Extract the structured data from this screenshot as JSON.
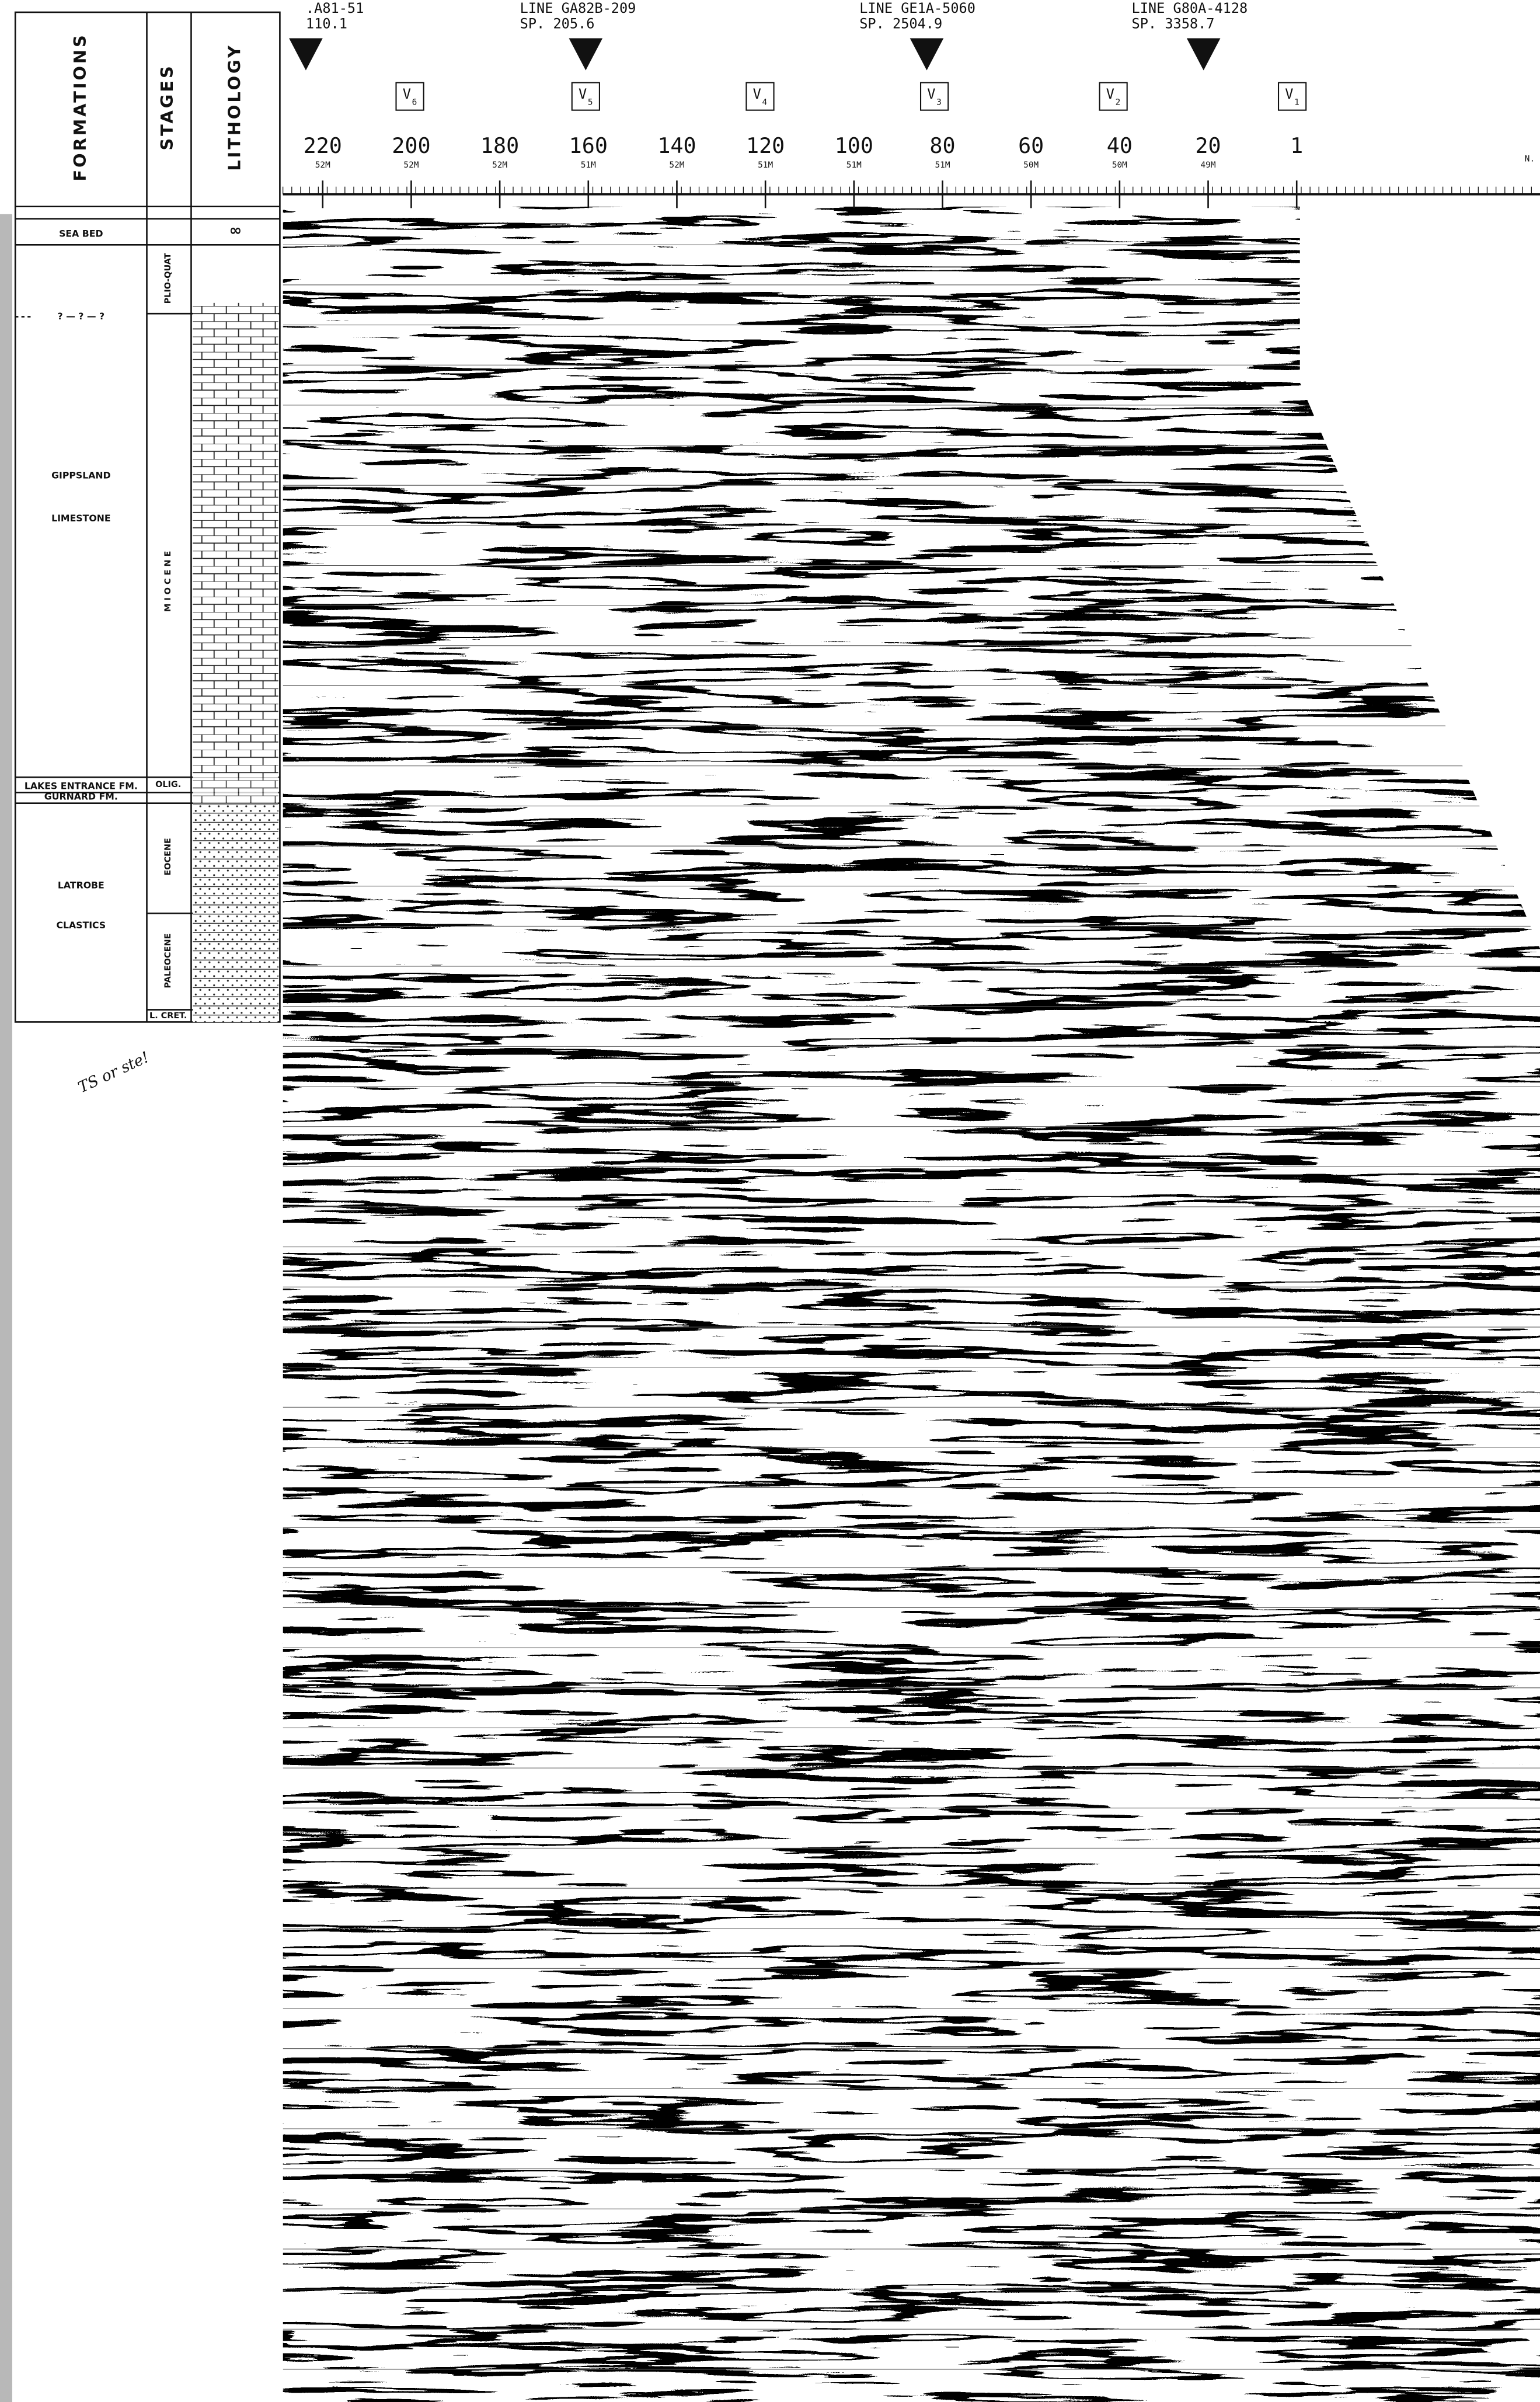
{
  "header": {
    "columns": [
      "FORMATIONS",
      "STAGES",
      "LITHOLOGY"
    ]
  },
  "formations": [
    "SEA BED",
    "? — ? — ?",
    "GIPPSLAND",
    "LIMESTONE",
    "LAKES ENTRANCE FM.",
    "GURNARD FM.",
    "LATROBE",
    "CLASTICS"
  ],
  "stages": [
    "PLIO-QUAT",
    "M I O C E N E",
    "OLIG.",
    "EOCENE",
    "PALEOCENE",
    "L. CRET."
  ],
  "lines": [
    {
      "name": ".A81-51",
      "sp": "110.1"
    },
    {
      "name": "LINE GA82B-209",
      "sp": "SP. 205.6"
    },
    {
      "name": "LINE GE1A-5060",
      "sp": "SP. 2504.9"
    },
    {
      "name": "LINE G80A-4128",
      "sp": "SP. 3358.7"
    }
  ],
  "velocity_markers": [
    {
      "letter": "V",
      "index": "6"
    },
    {
      "letter": "V",
      "index": "5"
    },
    {
      "letter": "V",
      "index": "4"
    },
    {
      "letter": "V",
      "index": "3"
    },
    {
      "letter": "V",
      "index": "2"
    },
    {
      "letter": "V",
      "index": "1"
    }
  ],
  "shotpoints": [
    {
      "label": "220",
      "offset": "52M"
    },
    {
      "label": "200",
      "offset": "52M"
    },
    {
      "label": "180",
      "offset": "52M"
    },
    {
      "label": "160",
      "offset": "51M"
    },
    {
      "label": "140",
      "offset": "52M"
    },
    {
      "label": "120",
      "offset": "51M"
    },
    {
      "label": "100",
      "offset": "51M"
    },
    {
      "label": "80",
      "offset": "51M"
    },
    {
      "label": "60",
      "offset": "50M"
    },
    {
      "label": "40",
      "offset": "50M"
    },
    {
      "label": "20",
      "offset": "49M"
    },
    {
      "label": "1",
      "offset": null
    }
  ],
  "end_label": "N.",
  "handwritten_note": "TS or ste!"
}
